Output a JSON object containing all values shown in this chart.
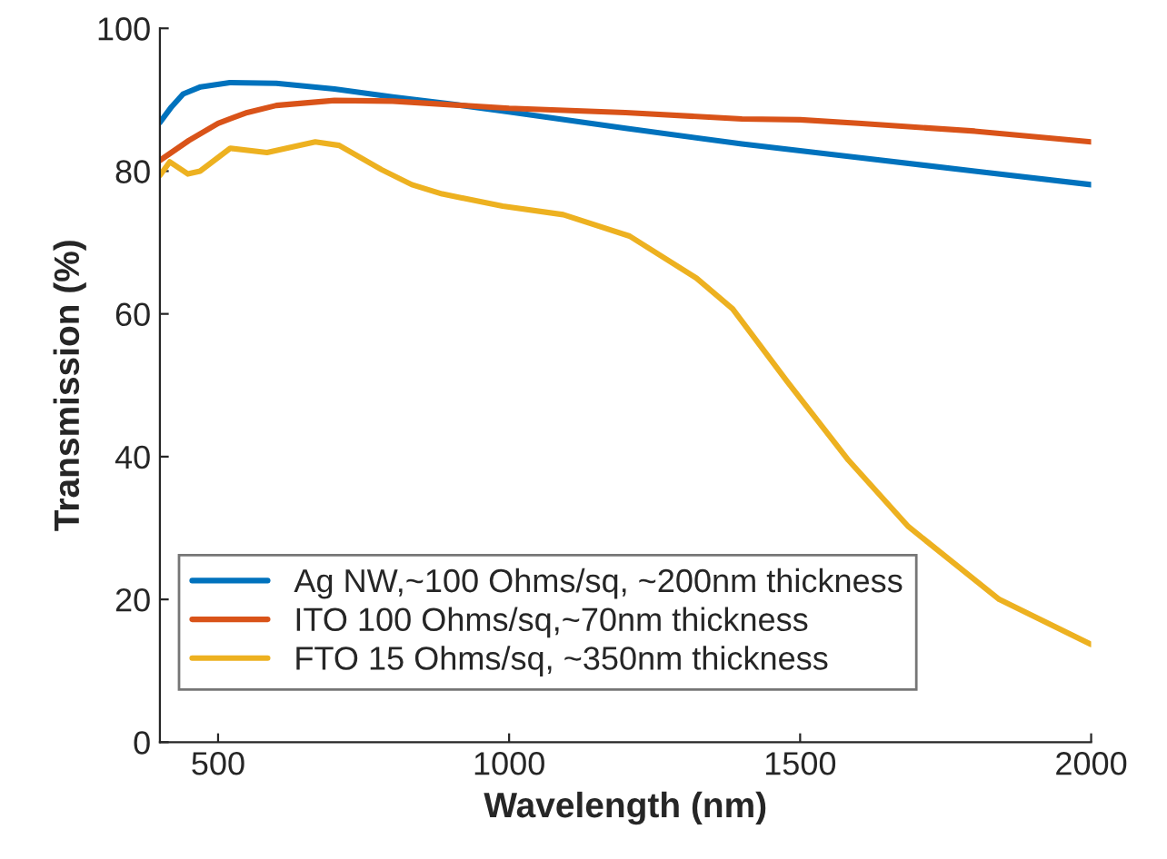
{
  "chart_data": {
    "type": "line",
    "xlabel": "Wavelength (nm)",
    "ylabel": "Transmission (%)",
    "xlim": [
      400,
      2000
    ],
    "ylim": [
      0,
      100
    ],
    "xticks": [
      500,
      1000,
      1500,
      2000
    ],
    "yticks": [
      0,
      20,
      40,
      60,
      80,
      100
    ],
    "grid": false,
    "legend": "bottom left",
    "marker": "none",
    "line_style": "solid",
    "series": [
      {
        "name": "Ag NW,~100 Ohms/sq, ~200nm thickness",
        "color": "#0072bd",
        "x": [
          400,
          420,
          440,
          470,
          520,
          600,
          700,
          800,
          900,
          1000,
          1200,
          1400,
          1600,
          1800,
          2000
        ],
        "values": [
          86.8,
          89,
          90.8,
          91.8,
          92.4,
          92.3,
          91.5,
          90.4,
          89.4,
          88.3,
          86,
          83.8,
          81.9,
          80,
          78.1
        ]
      },
      {
        "name": "ITO 100 Ohms/sq,~70nm thickness",
        "color": "#d95319",
        "x": [
          400,
          450,
          500,
          550,
          600,
          700,
          800,
          900,
          1000,
          1200,
          1400,
          1500,
          1600,
          1800,
          2000
        ],
        "values": [
          81.5,
          84.3,
          86.7,
          88.2,
          89.2,
          89.9,
          89.8,
          89.3,
          88.8,
          88.2,
          87.3,
          87.2,
          86.7,
          85.6,
          84.1
        ]
      },
      {
        "name": "FTO 15 Ohms/sq, ~350nm thickness",
        "color": "#edb120",
        "x": [
          400,
          417,
          448,
          469,
          521,
          584,
          667,
          708,
          781,
          833,
          885,
          989,
          1093,
          1207,
          1322,
          1384,
          1478,
          1583,
          1686,
          1842,
          2000
        ],
        "values": [
          79.4,
          81.3,
          79.6,
          80,
          83.2,
          82.6,
          84.1,
          83.6,
          80.2,
          78.1,
          76.8,
          75.1,
          73.9,
          70.9,
          65,
          60.7,
          50.5,
          39.5,
          30.2,
          20,
          13.7
        ]
      }
    ]
  }
}
